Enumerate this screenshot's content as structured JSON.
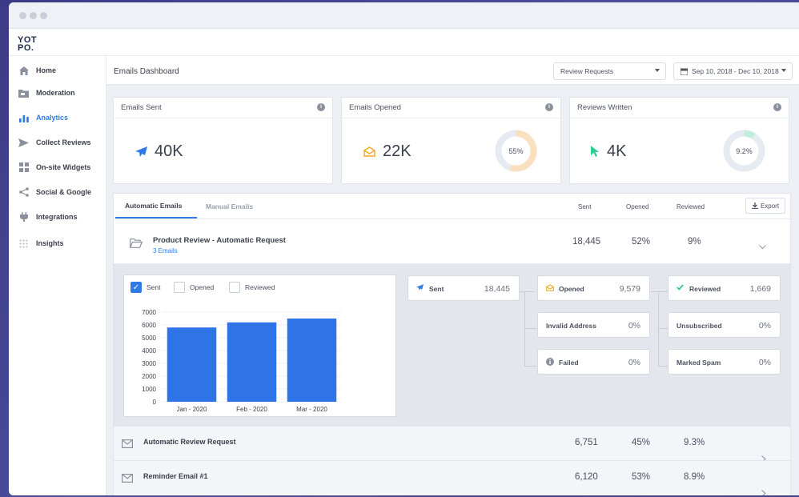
{
  "brand": {
    "logo_line1": "YOT",
    "logo_line2": "PO."
  },
  "sidebar": {
    "items": [
      {
        "label": "Home",
        "icon": "home-icon"
      },
      {
        "label": "Moderation",
        "icon": "folder-icon"
      },
      {
        "label": "Analytics",
        "icon": "bar-chart-icon",
        "active": true
      },
      {
        "label": "Collect Reviews",
        "icon": "send-icon"
      },
      {
        "label": "On-site Widgets",
        "icon": "widgets-icon"
      },
      {
        "label": "Social & Google",
        "icon": "share-icon"
      },
      {
        "label": "Integrations",
        "icon": "plug-icon"
      },
      {
        "label": "Insights",
        "icon": "grid-dots-icon"
      }
    ]
  },
  "header": {
    "title": "Emails Dashboard",
    "type_select": "Review Requests",
    "date_range": "Sep 10, 2018 - Dec 10, 2018"
  },
  "cards": {
    "sent": {
      "title": "Emails Sent",
      "value": "40K"
    },
    "opened": {
      "title": "Emails Opened",
      "value": "22K",
      "donut_label": "55%",
      "donut_pct": 55
    },
    "reviews": {
      "title": "Reviews Written",
      "value": "4K",
      "donut_label": "9.2%",
      "donut_pct": 9.2
    }
  },
  "table": {
    "tabs": [
      "Automatic Emails",
      "Manual Emails"
    ],
    "columns": {
      "sent": "Sent",
      "opened": "Opened",
      "reviewed": "Reviewed"
    },
    "export_label": "Export",
    "main_row": {
      "title": "Product Review - Automatic Request",
      "subtitle": "3 Emails",
      "sent": "18,445",
      "opened": "52%",
      "reviewed": "9%"
    },
    "rows": [
      {
        "title": "Automatic Review Request",
        "sent": "6,751",
        "opened": "45%",
        "reviewed": "9.3%"
      },
      {
        "title": "Reminder Email #1",
        "sent": "6,120",
        "opened": "53%",
        "reviewed": "8.9%"
      }
    ]
  },
  "detail": {
    "legend": {
      "sent": "Sent",
      "opened": "Opened",
      "reviewed": "Reviewed"
    },
    "stats": {
      "sent": {
        "label": "Sent",
        "value": "18,445"
      },
      "opened": {
        "label": "Opened",
        "value": "9,579"
      },
      "reviewed": {
        "label": "Reviewed",
        "value": "1,669"
      },
      "invalid": {
        "label": "Invalid Address",
        "value": "0%"
      },
      "unsubscribed": {
        "label": "Unsubscribed",
        "value": "0%"
      },
      "failed": {
        "label": "Failed",
        "value": "0%"
      },
      "spam": {
        "label": "Marked Spam",
        "value": "0%"
      }
    }
  },
  "colors": {
    "accent": "#2f7be5",
    "opened": "#f5a623",
    "reviewed": "#2ecc8f"
  },
  "chart_data": {
    "type": "bar",
    "categories": [
      "Jan - 2020",
      "Feb - 2020",
      "Mar - 2020"
    ],
    "values": [
      5800,
      6200,
      6500
    ],
    "yticks": [
      "0",
      "1000",
      "2000",
      "3000",
      "4000",
      "5000",
      "6000",
      "7000"
    ],
    "ylim": [
      0,
      7000
    ]
  }
}
